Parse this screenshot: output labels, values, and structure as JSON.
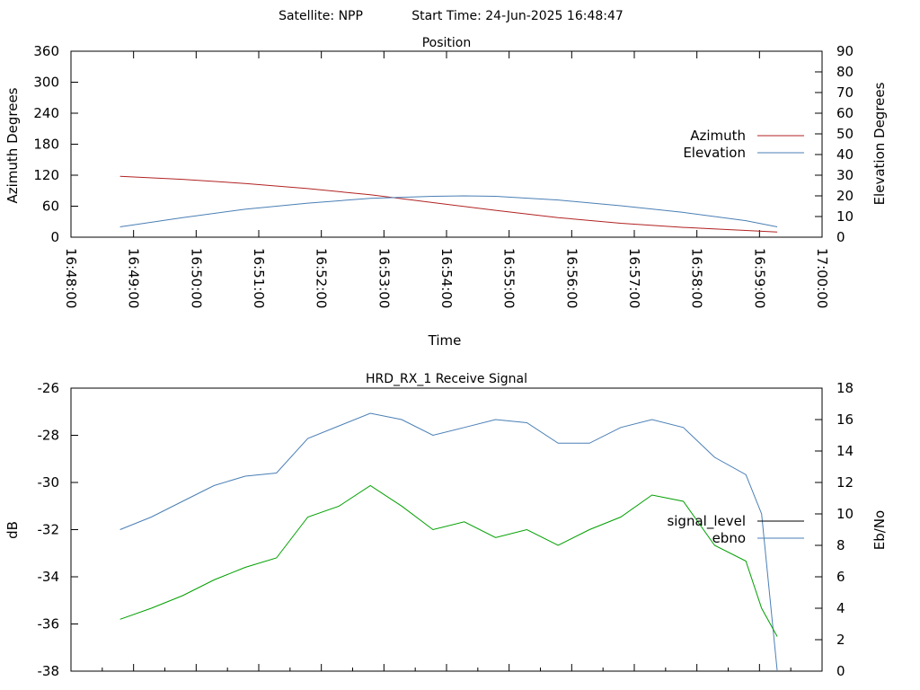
{
  "header": {
    "satellite": "Satellite: NPP",
    "start_time": "Start Time: 24-Jun-2025 16:48:47"
  },
  "chart_data": [
    {
      "type": "line",
      "title": "Position",
      "xlabel": "Time",
      "ylabel": "Azimuth Degrees",
      "y2label": "Elevation Degrees",
      "x_ticks": [
        "16:48:00",
        "16:49:00",
        "16:50:00",
        "16:51:00",
        "16:52:00",
        "16:53:00",
        "16:54:00",
        "16:55:00",
        "16:56:00",
        "16:57:00",
        "16:58:00",
        "16:59:00",
        "17:00:00"
      ],
      "y_ticks": [
        "0",
        "60",
        "120",
        "180",
        "240",
        "300",
        "360"
      ],
      "y2_ticks": [
        "0",
        "10",
        "20",
        "30",
        "40",
        "50",
        "60",
        "70",
        "80",
        "90"
      ],
      "ylim": [
        0,
        360
      ],
      "y2lim": [
        0,
        90
      ],
      "legend_position": "right",
      "series": [
        {
          "name": "Azimuth",
          "axis": "left",
          "color": "#b22222",
          "x": [
            "16:48:47",
            "16:49:47",
            "16:50:47",
            "16:51:47",
            "16:52:47",
            "16:53:47",
            "16:54:47",
            "16:55:47",
            "16:56:47",
            "16:57:47",
            "16:58:47",
            "16:59:17"
          ],
          "y": [
            118,
            112,
            104,
            94,
            82,
            67,
            52,
            38,
            27,
            19,
            13,
            10
          ]
        },
        {
          "name": "Elevation",
          "axis": "right",
          "color": "#4a7fb5",
          "x": [
            "16:48:47",
            "16:49:47",
            "16:50:47",
            "16:51:47",
            "16:52:47",
            "16:53:47",
            "16:54:17",
            "16:54:47",
            "16:55:47",
            "16:56:47",
            "16:57:47",
            "16:58:47",
            "16:59:17"
          ],
          "y": [
            5,
            9.5,
            13.5,
            16.5,
            18.8,
            19.8,
            20,
            19.8,
            18,
            15.2,
            12,
            8,
            5
          ]
        }
      ]
    },
    {
      "type": "line",
      "title": "HRD_RX_1 Receive Signal",
      "ylabel": "dB",
      "y2label": "Eb/No",
      "y_ticks": [
        "-26",
        "-28",
        "-30",
        "-32",
        "-34",
        "-36",
        "-38"
      ],
      "y2_ticks": [
        "0",
        "2",
        "4",
        "6",
        "8",
        "10",
        "12",
        "14",
        "16",
        "18"
      ],
      "ylim": [
        -38,
        -26
      ],
      "y2lim": [
        0,
        18
      ],
      "legend_position": "right",
      "series": [
        {
          "name": "signal_level",
          "axis": "left",
          "color": "#000000",
          "x": [],
          "y": []
        },
        {
          "name": "ebno",
          "axis": "right",
          "color": "#4a7fb5",
          "x": [
            "16:48:47",
            "16:49:17",
            "16:49:47",
            "16:50:17",
            "16:50:47",
            "16:51:17",
            "16:51:47",
            "16:52:17",
            "16:52:47",
            "16:53:17",
            "16:53:47",
            "16:54:17",
            "16:54:47",
            "16:55:17",
            "16:55:47",
            "16:56:17",
            "16:56:47",
            "16:57:17",
            "16:57:47",
            "16:58:17",
            "16:58:47",
            "16:59:02",
            "16:59:17"
          ],
          "y": [
            9,
            9.8,
            10.8,
            11.8,
            12.4,
            12.6,
            14.8,
            15.6,
            16.4,
            16,
            15,
            15.5,
            16,
            15.8,
            14.5,
            14.5,
            15.5,
            16,
            15.5,
            13.6,
            12.5,
            10,
            0
          ]
        },
        {
          "name": "",
          "axis": "right",
          "color": "#00a000",
          "x": [
            "16:48:47",
            "16:49:17",
            "16:49:47",
            "16:50:17",
            "16:50:47",
            "16:51:17",
            "16:51:47",
            "16:52:17",
            "16:52:47",
            "16:53:17",
            "16:53:47",
            "16:54:17",
            "16:54:47",
            "16:55:17",
            "16:55:47",
            "16:56:17",
            "16:56:47",
            "16:57:17",
            "16:57:47",
            "16:58:17",
            "16:58:47",
            "16:59:02",
            "16:59:17"
          ],
          "y": [
            3.3,
            4,
            4.8,
            5.8,
            6.6,
            7.2,
            9.8,
            10.5,
            11.8,
            10.5,
            9,
            9.5,
            8.5,
            9,
            8,
            9,
            9.8,
            11.2,
            10.8,
            8,
            7,
            4,
            2.2
          ]
        }
      ]
    }
  ]
}
